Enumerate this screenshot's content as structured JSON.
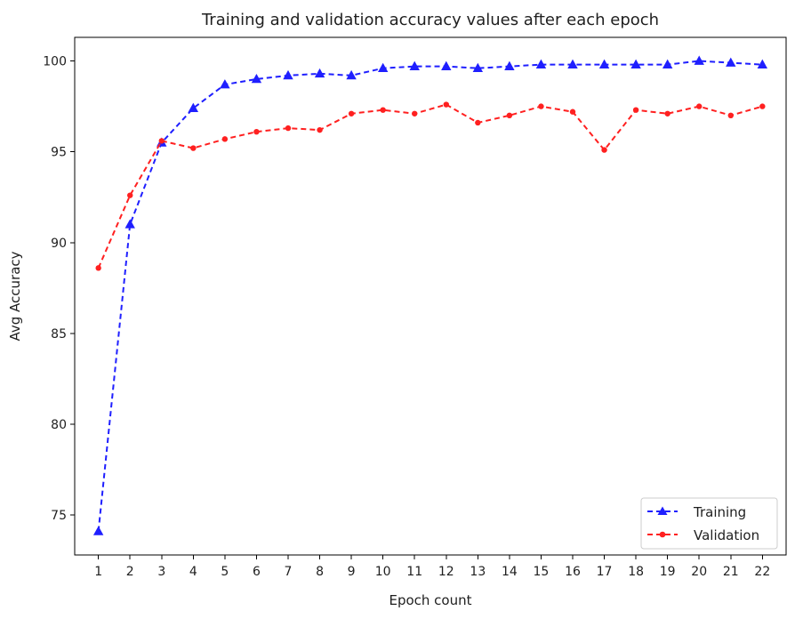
{
  "chart_data": {
    "type": "line",
    "title": "Training and validation accuracy values after each epoch",
    "xlabel": "Epoch count",
    "ylabel": "Avg Accuracy",
    "x": [
      1,
      2,
      3,
      4,
      5,
      6,
      7,
      8,
      9,
      10,
      11,
      12,
      13,
      14,
      15,
      16,
      17,
      18,
      19,
      20,
      21,
      22
    ],
    "x_ticks": [
      "1",
      "2",
      "3",
      "4",
      "5",
      "6",
      "7",
      "8",
      "9",
      "10",
      "11",
      "12",
      "13",
      "14",
      "15",
      "16",
      "17",
      "18",
      "19",
      "20",
      "21",
      "22"
    ],
    "y_ticks": [
      "75",
      "80",
      "85",
      "90",
      "95",
      "100"
    ],
    "xlim": [
      0.25,
      22.75
    ],
    "ylim": [
      72.8,
      101.3
    ],
    "grid": false,
    "legend": "lower-right",
    "series": [
      {
        "name": "Training",
        "color": "#1f1fff",
        "marker": "triangle",
        "line_style": "dashed",
        "values": [
          74.1,
          91.0,
          95.5,
          97.4,
          98.7,
          99.0,
          99.2,
          99.3,
          99.2,
          99.6,
          99.7,
          99.7,
          99.6,
          99.7,
          99.8,
          99.8,
          99.8,
          99.8,
          99.8,
          100.0,
          99.9,
          99.8
        ]
      },
      {
        "name": "Validation",
        "color": "#ff2020",
        "marker": "circle",
        "line_style": "dashed",
        "values": [
          88.6,
          92.6,
          95.6,
          95.2,
          95.7,
          96.1,
          96.3,
          96.2,
          97.1,
          97.3,
          97.1,
          97.6,
          96.6,
          97.0,
          97.5,
          97.2,
          95.1,
          97.3,
          97.1,
          97.5,
          97.0,
          97.5
        ]
      }
    ]
  }
}
